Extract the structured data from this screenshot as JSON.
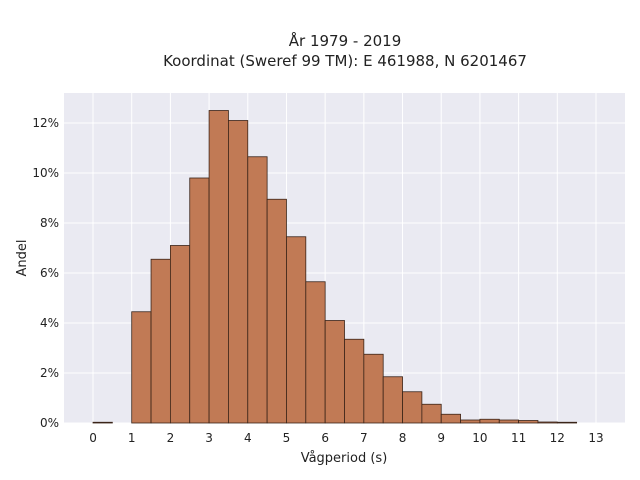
{
  "chart_data": {
    "type": "bar",
    "title_lines": [
      "År 1979 - 2019",
      "Koordinat (Sweref 99 TM): E 461988, N 6201467"
    ],
    "xlabel": "Vågperiod (s)",
    "ylabel": "Andel",
    "xlim": [
      -0.75,
      13.75
    ],
    "ylim": [
      0,
      13.2
    ],
    "x_ticks": [
      "0",
      "1",
      "2",
      "3",
      "4",
      "5",
      "6",
      "7",
      "8",
      "9",
      "10",
      "11",
      "12",
      "13"
    ],
    "y_ticks": [
      "0%",
      "2%",
      "4%",
      "6%",
      "8%",
      "10%",
      "12%"
    ],
    "bin_width": 0.5,
    "bins": [
      {
        "x0": 0.0,
        "value": 0.03
      },
      {
        "x0": 1.0,
        "value": 4.45
      },
      {
        "x0": 1.5,
        "value": 6.55
      },
      {
        "x0": 2.0,
        "value": 7.1
      },
      {
        "x0": 2.5,
        "value": 9.8
      },
      {
        "x0": 3.0,
        "value": 12.5
      },
      {
        "x0": 3.5,
        "value": 12.1
      },
      {
        "x0": 4.0,
        "value": 10.65
      },
      {
        "x0": 4.5,
        "value": 8.95
      },
      {
        "x0": 5.0,
        "value": 7.45
      },
      {
        "x0": 5.5,
        "value": 5.65
      },
      {
        "x0": 6.0,
        "value": 4.1
      },
      {
        "x0": 6.5,
        "value": 3.35
      },
      {
        "x0": 7.0,
        "value": 2.75
      },
      {
        "x0": 7.5,
        "value": 1.85
      },
      {
        "x0": 8.0,
        "value": 1.25
      },
      {
        "x0": 8.5,
        "value": 0.75
      },
      {
        "x0": 9.0,
        "value": 0.35
      },
      {
        "x0": 9.5,
        "value": 0.12
      },
      {
        "x0": 10.0,
        "value": 0.15
      },
      {
        "x0": 10.5,
        "value": 0.12
      },
      {
        "x0": 11.0,
        "value": 0.1
      },
      {
        "x0": 11.5,
        "value": 0.04
      },
      {
        "x0": 12.0,
        "value": 0.03
      }
    ],
    "grid": true,
    "legend": "none",
    "colors": {
      "bar": "#c17a55",
      "bar_edge": "#3a2418",
      "plot_bg": "#eaeaf2",
      "grid": "#ffffff"
    }
  }
}
